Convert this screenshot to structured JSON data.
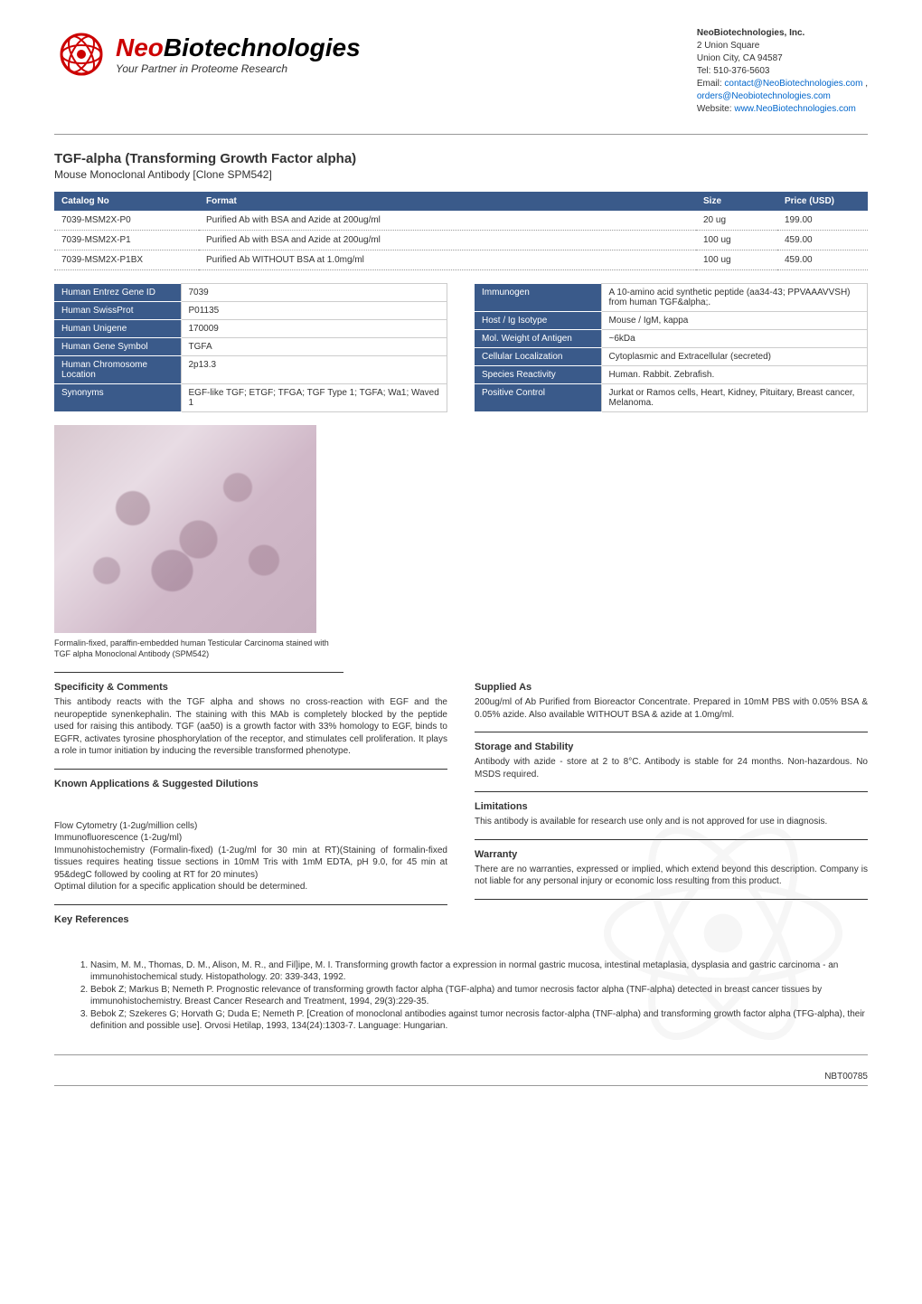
{
  "company": {
    "name": "NeoBiotechnologies, Inc.",
    "addr1": "2 Union Square",
    "addr2": "Union City, CA 94587",
    "tel": "Tel: 510-376-5603",
    "email_label": "Email: ",
    "email1": "contact@NeoBiotechnologies.com",
    "email_sep": " , ",
    "email2": "orders@Neobiotechnologies.com",
    "web_label": "Website: ",
    "website": "www.NeoBiotechnologies.com"
  },
  "logo": {
    "neo": "Neo",
    "bio": "Biotechnologies",
    "tag": "Your Partner in Proteome Research"
  },
  "product": {
    "title": "TGF-alpha (Transforming Growth Factor alpha)",
    "subtitle": "Mouse Monoclonal Antibody [Clone SPM542]"
  },
  "catalog": {
    "headers": [
      "Catalog No",
      "Format",
      "Size",
      "Price (USD)"
    ],
    "rows": [
      [
        "7039-MSM2X-P0",
        "Purified Ab with BSA and Azide at 200ug/ml",
        "20 ug",
        "199.00"
      ],
      [
        "7039-MSM2X-P1",
        "Purified Ab with BSA and Azide at 200ug/ml",
        "100 ug",
        "459.00"
      ],
      [
        "7039-MSM2X-P1BX",
        "Purified Ab WITHOUT BSA at 1.0mg/ml",
        "100 ug",
        "459.00"
      ]
    ],
    "col_widths": [
      "160px",
      "auto",
      "90px",
      "100px"
    ]
  },
  "left_props": [
    [
      "Human Entrez Gene ID",
      "7039"
    ],
    [
      "Human SwissProt",
      "P01135"
    ],
    [
      "Human Unigene",
      "170009"
    ],
    [
      "Human Gene Symbol",
      "TGFA"
    ],
    [
      "Human Chromosome Location",
      "2p13.3"
    ],
    [
      "Synonyms",
      "EGF-like TGF; ETGF; TFGA; TGF Type 1; TGFA; Wa1; Waved 1"
    ]
  ],
  "right_props": [
    [
      "Immunogen",
      "A 10-amino acid synthetic peptide (aa34-43; PPVAAAVVSH) from human TGF&alpha;."
    ],
    [
      "Host / Ig Isotype",
      "Mouse / IgM, kappa"
    ],
    [
      "Mol. Weight of Antigen",
      "~6kDa"
    ],
    [
      "Cellular Localization",
      "Cytoplasmic and Extracellular (secreted)"
    ],
    [
      "Species Reactivity",
      "Human. Rabbit. Zebrafish."
    ],
    [
      "Positive Control",
      "Jurkat or Ramos cells, Heart, Kidney, Pituitary, Breast cancer, Melanoma."
    ]
  ],
  "caption": "Formalin-fixed, paraffin-embedded human Testicular Carcinoma stained with TGF alpha Monoclonal Antibody (SPM542)",
  "sections": {
    "specificity_h": "Specificity & Comments",
    "specificity_p": "This antibody reacts with the TGF alpha and shows no cross-reaction with EGF and the neuropeptide synenkephalin. The staining with this MAb is completely blocked by the peptide used for raising this antibody. TGF (aa50) is a growth factor with 33% homology to EGF, binds to EGFR, activates tyrosine phosphorylation of the receptor, and stimulates cell proliferation. It plays a role in tumor initiation by inducing the reversible transformed phenotype.",
    "applications_h": "Known Applications & Suggested Dilutions",
    "applications_lines": [
      "Flow Cytometry (1-2ug/million cells)",
      "Immunofluorescence (1-2ug/ml)",
      "Immunohistochemistry (Formalin-fixed) (1-2ug/ml for 30 min at RT)(Staining of formalin-fixed tissues requires heating tissue sections in 10mM Tris with 1mM EDTA, pH 9.0, for 45 min at 95&degC followed by cooling at RT for 20 minutes)",
      "Optimal dilution for a specific application should be determined."
    ],
    "refs_h": "Key References",
    "supplied_h": "Supplied As",
    "supplied_p": "200ug/ml of Ab Purified from Bioreactor Concentrate. Prepared in 10mM PBS with 0.05% BSA & 0.05% azide. Also available WITHOUT BSA & azide at 1.0mg/ml.",
    "storage_h": "Storage and Stability",
    "storage_p": "Antibody with azide - store at 2 to 8°C. Antibody is stable for 24 months. Non-hazardous. No MSDS required.",
    "limit_h": "Limitations",
    "limit_p": "This antibody is available for research use only and is not approved for use in diagnosis.",
    "warranty_h": "Warranty",
    "warranty_p": "There are no warranties, expressed or implied, which extend beyond this description. Company is not liable for any personal injury or economic loss resulting from this product."
  },
  "references": [
    "Nasim, M. M., Thomas, D. M., Alison, M. R., and Fil]ipe, M. I. Transforming growth factor a expression in normal gastric mucosa, intestinal metaplasia, dysplasia and gastric carcinoma - an immunohistochemical study. Histopathology. 20: 339-343, 1992.",
    "Bebok Z; Markus B; Nemeth P. Prognostic relevance of transforming growth factor alpha (TGF-alpha) and tumor necrosis factor alpha (TNF-alpha) detected in breast cancer tissues by immunohistochemistry. Breast Cancer Research and Treatment, 1994, 29(3):229-35.",
    "Bebok Z; Szekeres G; Horvath G; Duda E; Nemeth P. [Creation of monoclonal antibodies against tumor necrosis factor-alpha (TNF-alpha) and transforming growth factor alpha (TFG-alpha), their definition and possible use]. Orvosi Hetilap, 1993, 134(24):1303-7. Language: Hungarian."
  ],
  "footer_code": "NBT00785",
  "colors": {
    "header_bg": "#3a5a8a",
    "link": "#0066cc",
    "logo_red": "#c00000"
  }
}
